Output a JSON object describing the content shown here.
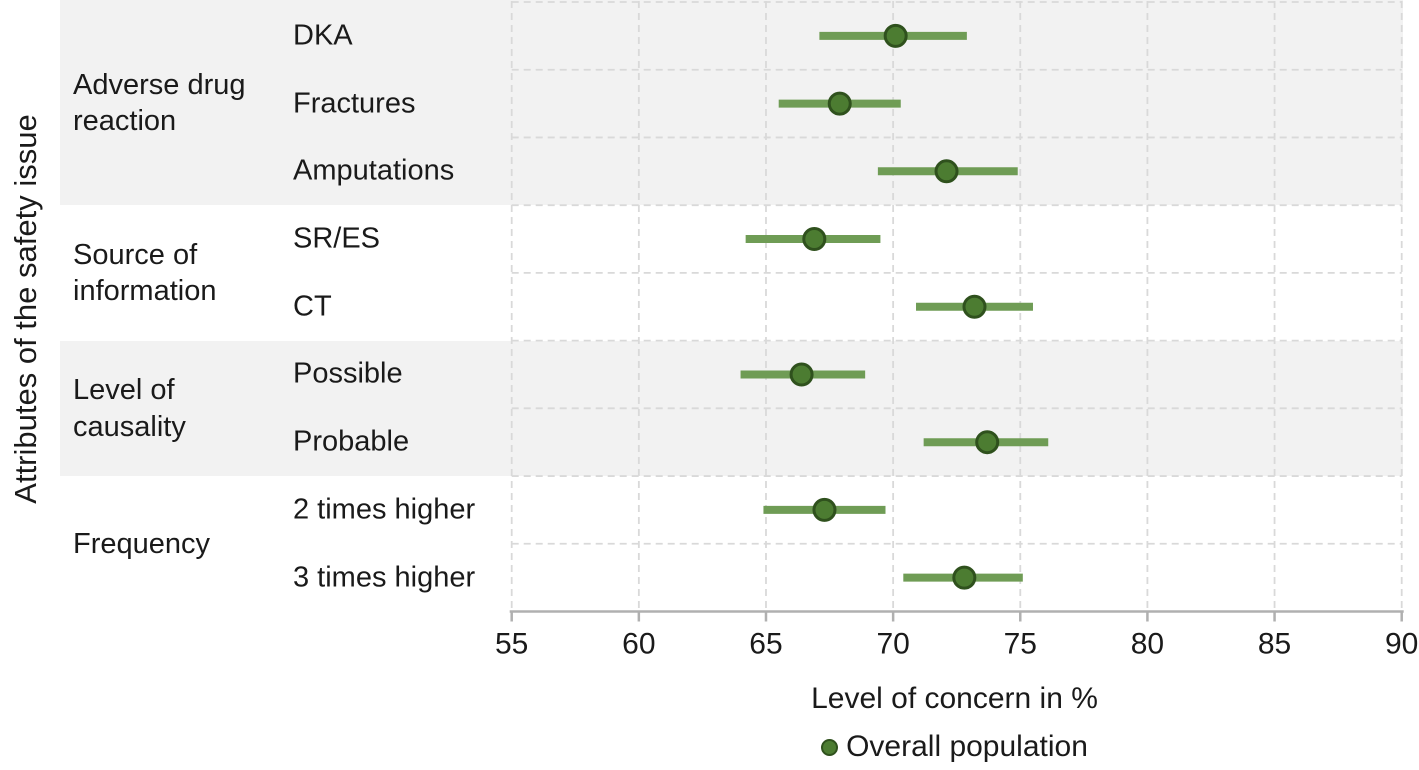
{
  "chart_data": {
    "type": "scatter",
    "subtype": "dot-with-ci-forest-plot",
    "y_axis_title": "Attributes of the safety issue",
    "xlabel": "Level of concern in %",
    "xlim": [
      55,
      90
    ],
    "xticks": [
      55,
      60,
      65,
      70,
      75,
      80,
      85,
      90
    ],
    "grid": "dashed vertical gridlines at each xtick; dashed horizontal gridlines at each row boundary; alternating shaded group bands",
    "legend": {
      "position": "bottom-center",
      "entries": [
        {
          "label": "Overall population",
          "marker": "dot"
        }
      ]
    },
    "groups": [
      {
        "label": "Adverse drug reaction",
        "rows": [
          {
            "label": "DKA",
            "value": 70.1,
            "ci_low": 67.1,
            "ci_high": 72.9
          },
          {
            "label": "Fractures",
            "value": 67.9,
            "ci_low": 65.5,
            "ci_high": 70.3
          },
          {
            "label": "Amputations",
            "value": 72.1,
            "ci_low": 69.4,
            "ci_high": 74.9
          }
        ]
      },
      {
        "label": "Source of information",
        "rows": [
          {
            "label": "SR/ES",
            "value": 66.9,
            "ci_low": 64.2,
            "ci_high": 69.5
          },
          {
            "label": "CT",
            "value": 73.2,
            "ci_low": 70.9,
            "ci_high": 75.5
          }
        ]
      },
      {
        "label": "Level of causality",
        "rows": [
          {
            "label": "Possible",
            "value": 66.4,
            "ci_low": 64.0,
            "ci_high": 68.9
          },
          {
            "label": "Probable",
            "value": 73.7,
            "ci_low": 71.2,
            "ci_high": 76.1
          }
        ]
      },
      {
        "label": "Frequency",
        "rows": [
          {
            "label": "2 times higher",
            "value": 67.3,
            "ci_low": 64.9,
            "ci_high": 69.7
          },
          {
            "label": "3 times higher",
            "value": 72.8,
            "ci_low": 70.4,
            "ci_high": 75.1
          }
        ]
      }
    ],
    "colors": {
      "ci_line": "#6f9c55",
      "dot_fill": "#4c7c31",
      "dot_stroke": "#2f511d",
      "band_shade": "#f2f2f2",
      "gridline": "#d9d9d9",
      "axis": "#b0b0b0",
      "text": "#1a1a1a"
    }
  }
}
